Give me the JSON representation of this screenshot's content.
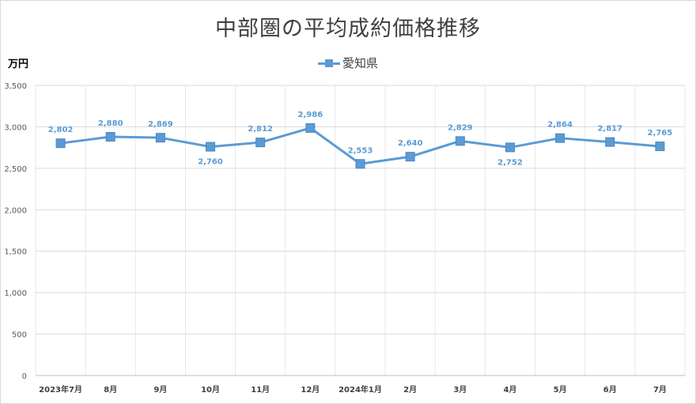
{
  "chart_data": {
    "type": "line",
    "title": "中部圏の平均成約価格推移",
    "ylabel": "万円",
    "xlabel": "",
    "ylim": [
      0,
      3500
    ],
    "y_ticks": [
      "0",
      "500",
      "1,000",
      "1,500",
      "2,000",
      "2,500",
      "3,000",
      "3,500"
    ],
    "grid": true,
    "legend_position": "top",
    "categories": [
      "2023年7月",
      "8月",
      "9月",
      "10月",
      "11月",
      "12月",
      "2024年1月",
      "2月",
      "3月",
      "4月",
      "5月",
      "6月",
      "7月"
    ],
    "series": [
      {
        "name": "愛知県",
        "color": "#5b9bd5",
        "values": [
          2802,
          2880,
          2869,
          2760,
          2812,
          2986,
          2553,
          2640,
          2829,
          2752,
          2864,
          2817,
          2765
        ],
        "labels": [
          "2,802",
          "2,880",
          "2,869",
          "2,760",
          "2,812",
          "2,986",
          "2,553",
          "2,640",
          "2,829",
          "2,752",
          "2,864",
          "2,817",
          "2,765"
        ]
      }
    ]
  }
}
